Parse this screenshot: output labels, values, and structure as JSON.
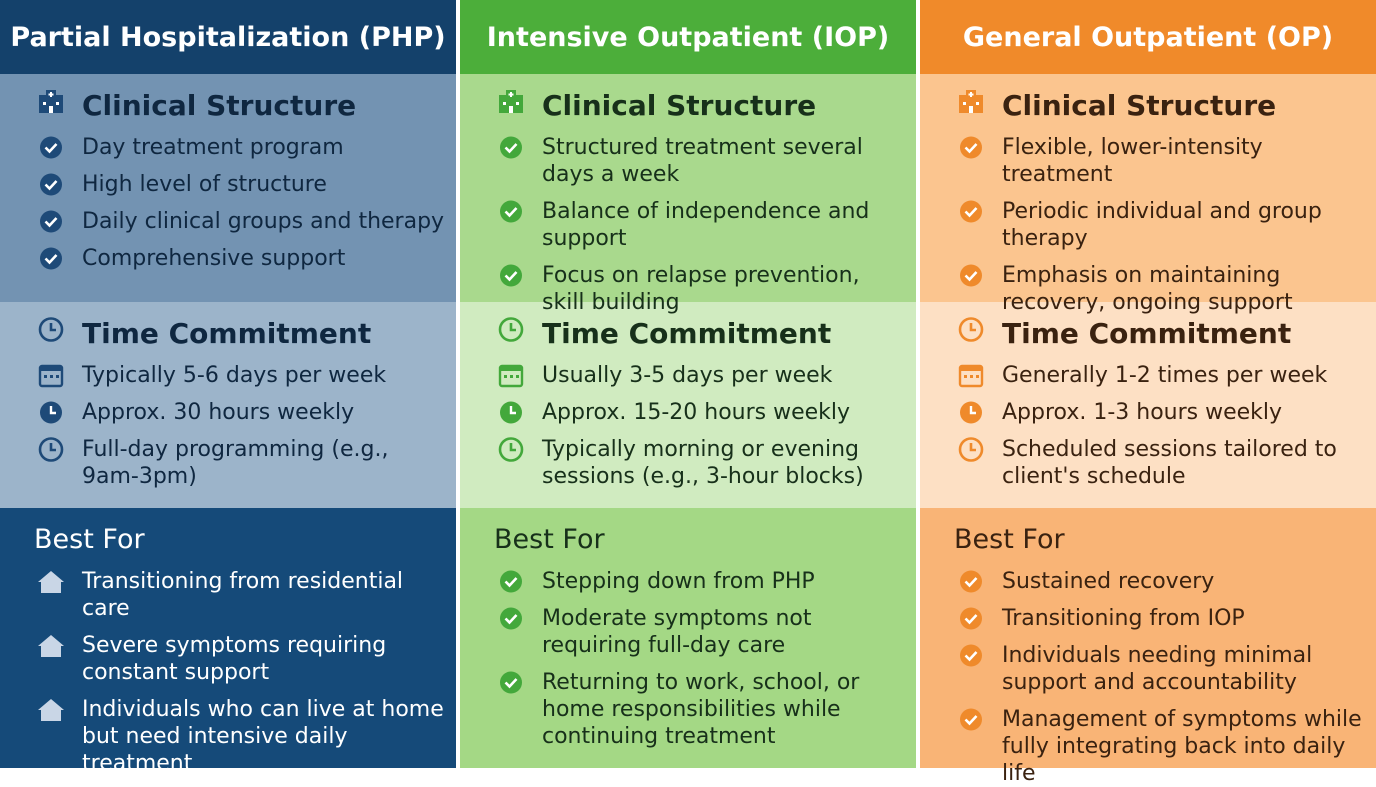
{
  "columns": [
    {
      "title": "Partial Hospitalization (PHP)",
      "clinical": {
        "heading": "Clinical Structure",
        "items": [
          "Day treatment program",
          "High level of structure",
          "Daily clinical groups and therapy",
          "Comprehensive support"
        ]
      },
      "time": {
        "heading": "Time Commitment",
        "items": [
          "Typically 5-6 days per week",
          "Approx. 30 hours weekly",
          "Full-day programming (e.g., 9am-3pm)"
        ]
      },
      "best_for": {
        "heading": "Best For",
        "items": [
          "Transitioning from residential care",
          "Severe symptoms requiring constant support",
          "Individuals who can live at home but need intensive daily treatment"
        ]
      }
    },
    {
      "title": "Intensive Outpatient (IOP)",
      "clinical": {
        "heading": "Clinical Structure",
        "items": [
          "Structured treatment several days a week",
          "Balance of independence and support",
          "Focus on relapse prevention, skill building"
        ]
      },
      "time": {
        "heading": "Time Commitment",
        "items": [
          "Usually 3-5 days per week",
          "Approx. 15-20 hours weekly",
          "Typically morning or evening sessions (e.g., 3-hour blocks)"
        ]
      },
      "best_for": {
        "heading": "Best For",
        "items": [
          "Stepping down from PHP",
          "Moderate symptoms not requiring full-day care",
          "Returning to work, school, or home responsibilities while continuing treatment"
        ]
      }
    },
    {
      "title": "General Outpatient (OP)",
      "clinical": {
        "heading": "Clinical Structure",
        "items": [
          "Flexible, lower-intensity treatment",
          "Periodic individual and group therapy",
          "Emphasis on maintaining recovery, ongoing support"
        ]
      },
      "time": {
        "heading": "Time Commitment",
        "items": [
          "Generally 1-2 times per week",
          "Approx. 1-3 hours weekly",
          "Scheduled sessions tailored to client's schedule"
        ]
      },
      "best_for": {
        "heading": "Best For",
        "items": [
          "Sustained recovery",
          "Transitioning from IOP",
          "Individuals needing minimal support and accountability",
          "Management of symptoms while fully integrating back into daily life"
        ]
      }
    }
  ]
}
